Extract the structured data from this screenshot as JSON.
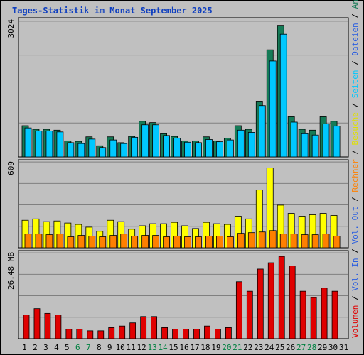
{
  "chart_data": {
    "type": "bar",
    "title": "Tages-Statistik im Monat September 2025",
    "categories": [
      "1",
      "2",
      "3",
      "4",
      "5",
      "6",
      "7",
      "8",
      "9",
      "10",
      "11",
      "12",
      "13",
      "14",
      "15",
      "16",
      "17",
      "18",
      "19",
      "20",
      "21",
      "22",
      "23",
      "24",
      "25",
      "26",
      "27",
      "28",
      "29",
      "30",
      "31"
    ],
    "weekend_days": [
      "6",
      "7",
      "13",
      "14",
      "20",
      "21",
      "27",
      "28"
    ],
    "panels": [
      {
        "scale_label": "3024",
        "scale_max": 3024,
        "series": [
          {
            "name": "Anfragen",
            "color": "#157b57",
            "values": [
              700,
              620,
              620,
              600,
              360,
              350,
              450,
              250,
              450,
              320,
              460,
              800,
              770,
              520,
              460,
              360,
              360,
              450,
              360,
              420,
              700,
              620,
              1250,
              2400,
              2950,
              900,
              620,
              600,
              900,
              800,
              0
            ]
          },
          {
            "name": "Dateien",
            "color": "#00c8ff",
            "values": [
              650,
              580,
              580,
              560,
              320,
              300,
              400,
              210,
              380,
              300,
              440,
              720,
              720,
              480,
              420,
              330,
              320,
              390,
              340,
              380,
              600,
              550,
              1150,
              2150,
              2750,
              780,
              520,
              490,
              740,
              690,
              0
            ]
          }
        ]
      },
      {
        "scale_label": "609",
        "scale_max": 609,
        "series": [
          {
            "name": "Besuche",
            "color": "#ffff00",
            "values": [
              200,
              210,
              190,
              195,
              180,
              170,
              150,
              120,
              200,
              190,
              135,
              160,
              175,
              175,
              185,
              160,
              140,
              185,
              175,
              170,
              230,
              210,
              420,
              580,
              310,
              250,
              230,
              240,
              250,
              235,
              0
            ]
          },
          {
            "name": "Rechner",
            "color": "#ff8000",
            "values": [
              100,
              100,
              95,
              100,
              80,
              90,
              85,
              80,
              90,
              100,
              85,
              90,
              90,
              80,
              85,
              80,
              80,
              85,
              85,
              80,
              105,
              110,
              115,
              125,
              100,
              100,
              95,
              95,
              100,
              85,
              0
            ]
          }
        ]
      },
      {
        "scale_label": "26.48 MB",
        "scale_max": 26.48,
        "series": [
          {
            "name": "Volumen",
            "color": "#e00000",
            "values": [
              7.5,
              9.5,
              8,
              7.5,
              3,
              3,
              2.5,
              2.5,
              3.5,
              4,
              5,
              7,
              7,
              3.5,
              3,
              3,
              3,
              4,
              3,
              3.5,
              18,
              15,
              22,
              24,
              26,
              23,
              15,
              13,
              16,
              15,
              0
            ]
          }
        ]
      }
    ],
    "right_labels": [
      {
        "text": "Volumen",
        "color": "#e00000"
      },
      {
        "text": " / ",
        "color": "#000000"
      },
      {
        "text": "Vol. In",
        "color": "#2b5fe0"
      },
      {
        "text": " / ",
        "color": "#000000"
      },
      {
        "text": "Vol. Out",
        "color": "#2b5fe0"
      },
      {
        "text": " / ",
        "color": "#000000"
      },
      {
        "text": "Rechner",
        "color": "#ff8000"
      },
      {
        "text": " / ",
        "color": "#000000"
      },
      {
        "text": "Besuche",
        "color": "#e0e000"
      },
      {
        "text": " / ",
        "color": "#000000"
      },
      {
        "text": "Seiten",
        "color": "#00c8ff"
      },
      {
        "text": " / ",
        "color": "#000000"
      },
      {
        "text": "Dateien",
        "color": "#2b5fe0"
      },
      {
        "text": " / ",
        "color": "#000000"
      },
      {
        "text": "Anfragen",
        "color": "#157b57"
      }
    ],
    "colors": {
      "background": "#c0c0c0",
      "title": "#1040c0",
      "weekend_tick": "#008040",
      "gridline": "#808080"
    }
  }
}
